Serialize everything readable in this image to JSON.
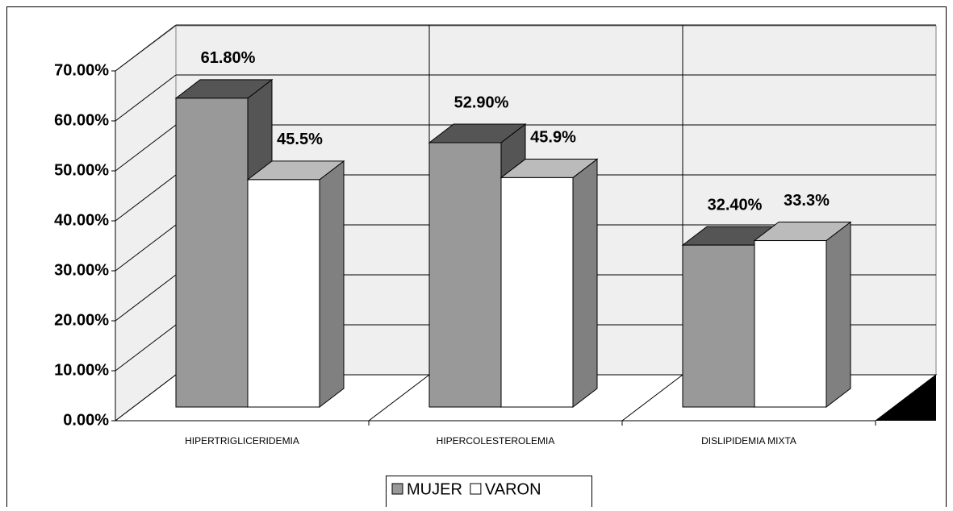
{
  "chart_data": {
    "type": "bar3d",
    "categories": [
      "HIPERTRIGLICERIDEMIA",
      "HIPERCOLESTEROLEMIA",
      "DISLIPIDEMIA MIXTA"
    ],
    "series": [
      {
        "name": "MUJER",
        "color": "#999999",
        "values": [
          61.8,
          52.9,
          32.4
        ],
        "value_labels": [
          "61.80%",
          "52.90%",
          "32.40%"
        ]
      },
      {
        "name": "VARON",
        "color": "#ffffff",
        "values": [
          45.5,
          45.9,
          33.3
        ],
        "value_labels": [
          "45.5%",
          "45.9%",
          "33.3%"
        ]
      }
    ],
    "ylim": [
      0,
      70
    ],
    "yticks": [
      {
        "value": 0,
        "label": "0.00%"
      },
      {
        "value": 10,
        "label": "10.00%"
      },
      {
        "value": 20,
        "label": "20.00%"
      },
      {
        "value": 30,
        "label": "30.00%"
      },
      {
        "value": 40,
        "label": "40.00%"
      },
      {
        "value": 50,
        "label": "50.00%"
      },
      {
        "value": 60,
        "label": "60.00%"
      },
      {
        "value": 70,
        "label": "70.00%"
      }
    ],
    "grid": true,
    "legend": "bottom"
  }
}
